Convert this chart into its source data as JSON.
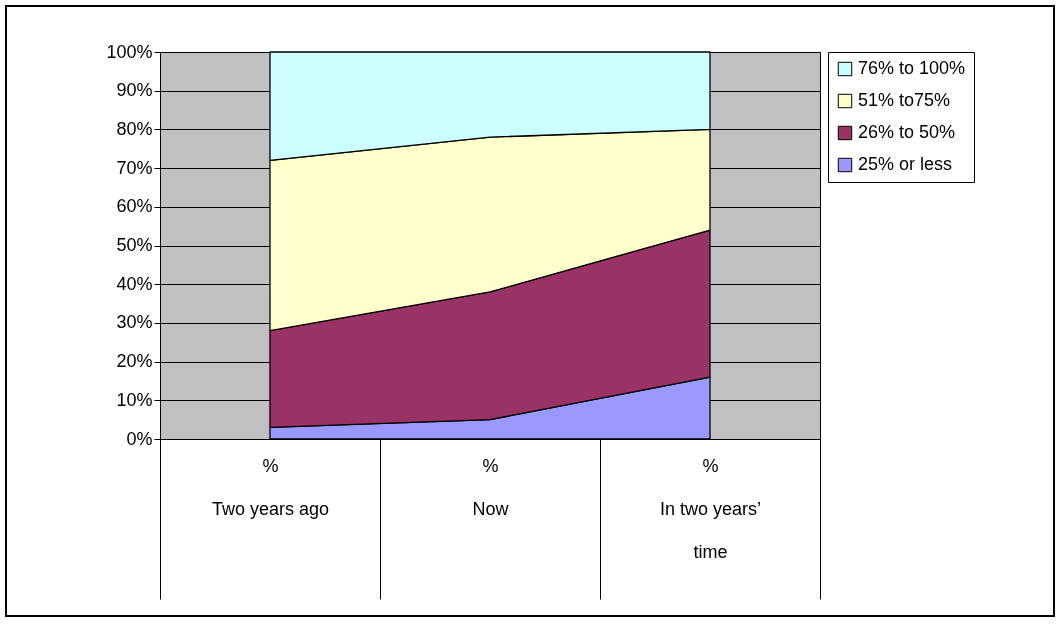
{
  "chart_data": {
    "type": "area",
    "stacked": true,
    "categories": [
      "%\nTwo years ago",
      "%\nNow",
      "%\nIn two years’\ntime"
    ],
    "series": [
      {
        "name": "25% or less",
        "color": "#9999ff",
        "values": [
          3,
          5,
          16
        ]
      },
      {
        "name": "26% to 50%",
        "color": "#993366",
        "values": [
          25,
          33,
          38
        ]
      },
      {
        "name": "51% to75%",
        "color": "#ffffcc",
        "values": [
          44,
          40,
          26
        ]
      },
      {
        "name": "76% to 100%",
        "color": "#ccffff",
        "values": [
          28,
          22,
          20
        ]
      }
    ],
    "ylim": [
      0,
      100
    ],
    "yticks": [
      {
        "value": 0,
        "label": "0%"
      },
      {
        "value": 10,
        "label": "10%"
      },
      {
        "value": 20,
        "label": "20%"
      },
      {
        "value": 30,
        "label": "30%"
      },
      {
        "value": 40,
        "label": "40%"
      },
      {
        "value": 50,
        "label": "50%"
      },
      {
        "value": 60,
        "label": "60%"
      },
      {
        "value": 70,
        "label": "70%"
      },
      {
        "value": 80,
        "label": "80%"
      },
      {
        "value": 90,
        "label": "90%"
      },
      {
        "value": 100,
        "label": "100%"
      }
    ],
    "grid": "y",
    "legend": "right"
  }
}
